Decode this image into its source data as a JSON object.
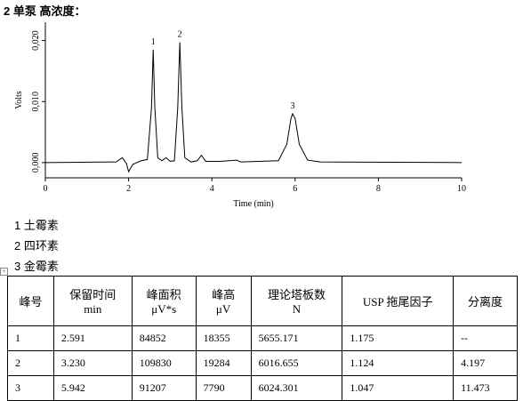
{
  "header": {
    "title": "2 单泵 高浓度："
  },
  "chart_data": {
    "type": "line",
    "x_label": "Time (min)",
    "y_label": "Volts",
    "x": [
      0,
      1.7,
      1.85,
      1.95,
      2.0,
      2.1,
      2.3,
      2.45,
      2.55,
      2.59,
      2.63,
      2.7,
      2.8,
      2.9,
      3.0,
      3.1,
      3.18,
      3.23,
      3.28,
      3.35,
      3.5,
      3.65,
      3.75,
      3.85,
      4.2,
      4.6,
      4.65,
      4.7,
      5.6,
      5.8,
      5.9,
      5.94,
      6.0,
      6.1,
      6.3,
      6.6,
      10
    ],
    "series": [
      {
        "color": "#000000",
        "values": [
          0,
          0.0001,
          0.0008,
          -0.0002,
          -0.0015,
          -0.0003,
          0.0003,
          0.0005,
          0.009,
          0.0185,
          0.009,
          0.0008,
          0.0003,
          0.0008,
          0.0002,
          0.0003,
          0.009,
          0.0197,
          0.009,
          0.0008,
          0.0001,
          0.0003,
          0.0012,
          0.0002,
          0.0002,
          0.0004,
          0.0002,
          0.0001,
          0.0003,
          0.003,
          0.0072,
          0.008,
          0.0072,
          0.003,
          0.0004,
          0.0001,
          0
        ]
      }
    ],
    "xlim": [
      0,
      10
    ],
    "ylim": [
      -0.0025,
      0.023
    ],
    "xticks": [
      0,
      2,
      4,
      6,
      8,
      10
    ],
    "yticks": [
      {
        "value": 0,
        "label": "0,000"
      },
      {
        "value": 0.01,
        "label": "0,010"
      },
      {
        "value": 0.02,
        "label": "0,020"
      }
    ],
    "annotations": [
      "1",
      "2",
      "3"
    ]
  },
  "legend": [
    "1 土霉素",
    "2 四环素",
    "3 金霉素"
  ],
  "table": {
    "header": [
      [
        "峰号"
      ],
      [
        "保留时间",
        "min"
      ],
      [
        "峰面积",
        "μV*s"
      ],
      [
        "峰高",
        "μV"
      ],
      [
        "理论塔板数",
        "N"
      ],
      [
        "USP 拖尾因子"
      ],
      [
        "分离度"
      ]
    ],
    "rows": [
      [
        "1",
        "2.591",
        "84852",
        "18355",
        "5655.171",
        "1.175",
        "--"
      ],
      [
        "2",
        "3.230",
        "109830",
        "19284",
        "6016.655",
        "1.124",
        "4.197"
      ],
      [
        "3",
        "5.942",
        "91207",
        "7790",
        "6024.301",
        "1.047",
        "11.473"
      ]
    ]
  }
}
